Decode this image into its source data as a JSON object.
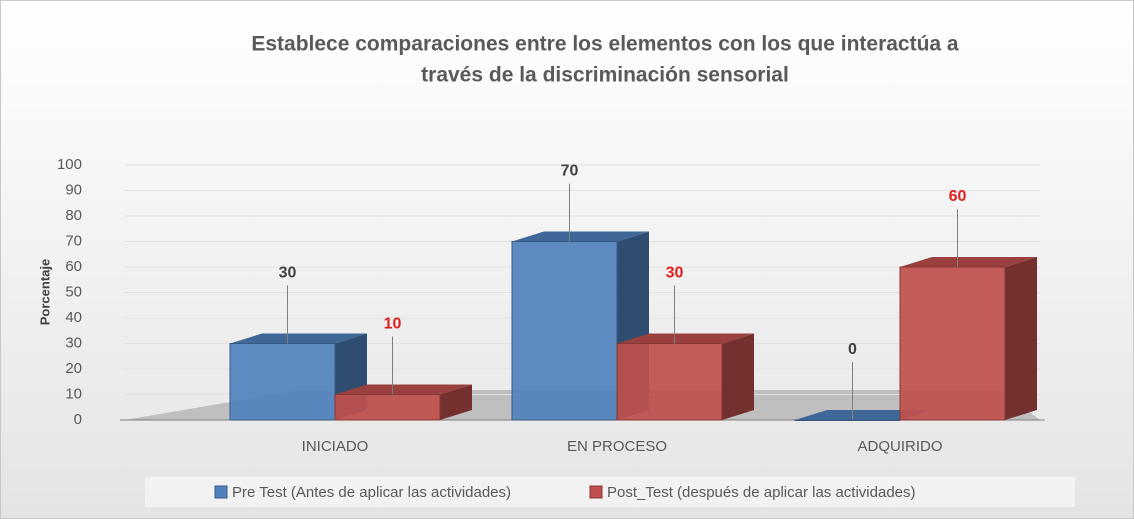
{
  "chart_data": {
    "type": "bar3d",
    "title": [
      "Establece comparaciones entre los elementos con los que interactúa a",
      "través de la discriminación sensorial"
    ],
    "y_label": "Porcentaje",
    "categories": [
      "INICIADO",
      "EN PROCESO",
      "ADQUIRIDO"
    ],
    "series": [
      {
        "name": "Pre Test (Antes de aplicar las actividades)",
        "color": "#4f81bd",
        "label_color": "#404040",
        "values": [
          30,
          70,
          0
        ]
      },
      {
        "name": "Post_Test (después de aplicar las actividades)",
        "color": "#c0504d",
        "label_color": "#e0201c",
        "values": [
          10,
          30,
          60
        ]
      }
    ],
    "ylim": [
      0,
      100
    ],
    "yticks": [
      0,
      10,
      20,
      30,
      40,
      50,
      60,
      70,
      80,
      90,
      100
    ],
    "grid": true,
    "legend": "bottom"
  }
}
